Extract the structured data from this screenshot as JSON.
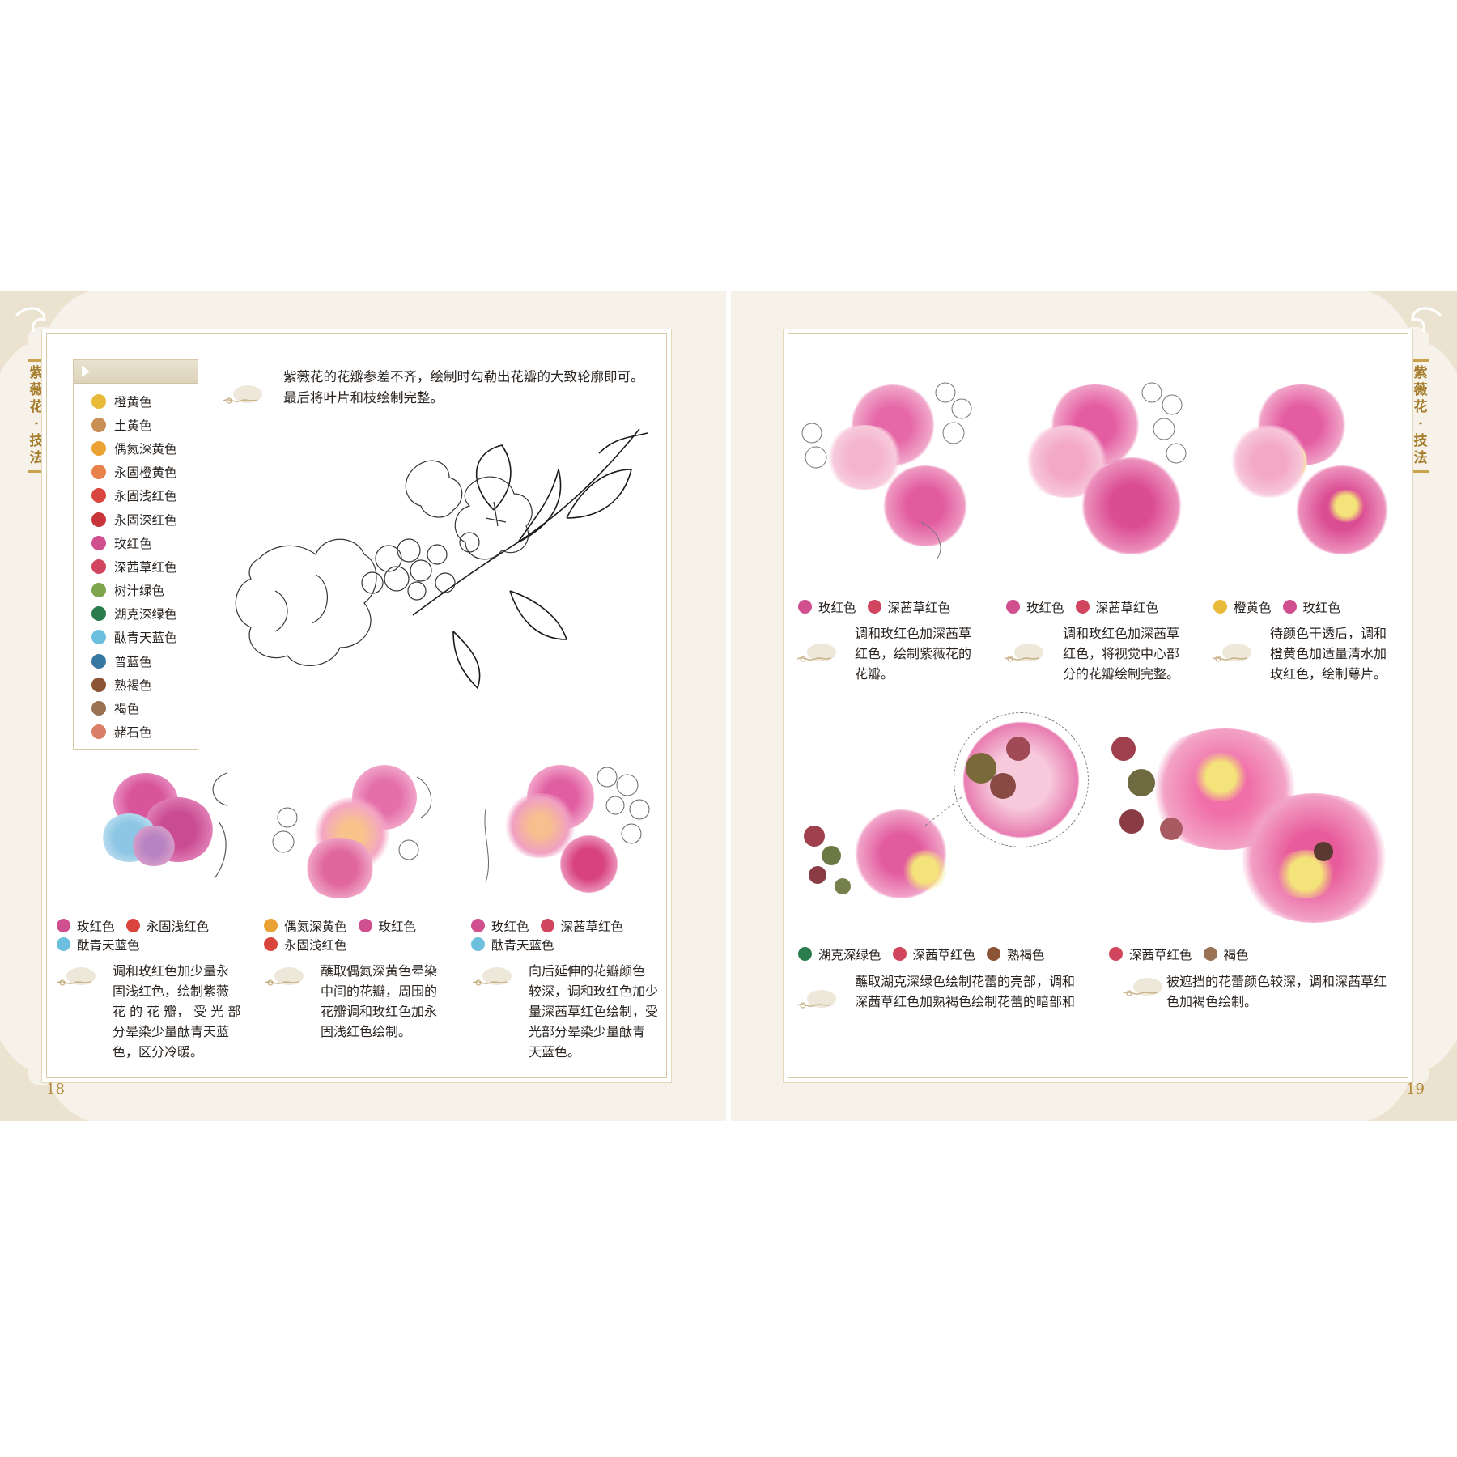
{
  "colors": {
    "orange_yellow": "#e9b93a",
    "earth_yellow": "#c98f55",
    "azo_deep_yellow": "#eba235",
    "perm_orange_yellow": "#e8814a",
    "perm_light_red": "#d9453c",
    "perm_deep_red": "#c8343a",
    "rose_red": "#cf4f8f",
    "deep_madder": "#d2455e",
    "sap_green": "#7ea54b",
    "hooker_deep_green": "#2b7c4c",
    "phthalo_sky_blue": "#6cc0dd",
    "prussian_blue": "#3678a2",
    "burnt_umber": "#8b5434",
    "brown": "#9a7254",
    "ochre": "#da7f67",
    "gold": "#b38a3b",
    "frame": "#d9c8a6"
  },
  "left_page": {
    "side_tab": [
      "紫",
      "薇",
      "花",
      "·",
      "技",
      "法"
    ],
    "page_number": "18",
    "palette": [
      {
        "name": "橙黄色",
        "color": "#e9b93a"
      },
      {
        "name": "土黄色",
        "color": "#c98f55"
      },
      {
        "name": "偶氮深黄色",
        "color": "#eba235"
      },
      {
        "name": "永固橙黄色",
        "color": "#e8814a"
      },
      {
        "name": "永固浅红色",
        "color": "#d9453c"
      },
      {
        "name": "永固深红色",
        "color": "#c8343a"
      },
      {
        "name": "玫红色",
        "color": "#cf4f8f"
      },
      {
        "name": "深茜草红色",
        "color": "#d2455e"
      },
      {
        "name": "树汁绿色",
        "color": "#7ea54b"
      },
      {
        "name": "湖克深绿色",
        "color": "#2b7c4c"
      },
      {
        "name": "酞青天蓝色",
        "color": "#6cc0dd"
      },
      {
        "name": "普蓝色",
        "color": "#3678a2"
      },
      {
        "name": "熟褐色",
        "color": "#8b5434"
      },
      {
        "name": "褐色",
        "color": "#9a7254"
      },
      {
        "name": "赭石色",
        "color": "#da7f67"
      }
    ],
    "intro_line1": "紫薇花的花瓣参差不齐，绘制时勾勒出花瓣的大致轮廓即可。",
    "intro_line2": "最后将叶片和枝绘制完整。",
    "steps": [
      {
        "swatches": [
          {
            "name": "玫红色"
          },
          {
            "name": "永固浅红色"
          },
          {
            "name": "酞青天蓝色"
          }
        ],
        "lines": [
          "调和玫红色加少量永",
          "固浅红色，绘制紫薇",
          "花 的 花 瓣， 受 光 部",
          "分晕染少量酞青天蓝",
          "色，区分冷暖。"
        ]
      },
      {
        "swatches": [
          {
            "name": "偶氮深黄色"
          },
          {
            "name": "玫红色"
          },
          {
            "name": "永固浅红色"
          }
        ],
        "lines": [
          "蘸取偶氮深黄色晕染",
          "中间的花瓣，周围的",
          "花瓣调和玫红色加永",
          "固浅红色绘制。"
        ]
      },
      {
        "swatches": [
          {
            "name": "玫红色"
          },
          {
            "name": "深茜草红色"
          },
          {
            "name": "酞青天蓝色"
          }
        ],
        "lines": [
          "向后延伸的花瓣颜色",
          "较深，调和玫红色加少",
          "量深茜草红色绘制，受",
          "光部分晕染少量酞青",
          "天蓝色。"
        ]
      }
    ]
  },
  "right_page": {
    "side_tab": [
      "紫",
      "薇",
      "花",
      "·",
      "技",
      "法"
    ],
    "page_number": "19",
    "steps_top": [
      {
        "swatches": [
          {
            "name": "玫红色"
          },
          {
            "name": "深茜草红色"
          }
        ],
        "lines": [
          "调和玫红色加深茜草",
          "红色，绘制紫薇花的",
          "花瓣。"
        ]
      },
      {
        "swatches": [
          {
            "name": "玫红色"
          },
          {
            "name": "深茜草红色"
          }
        ],
        "lines": [
          "调和玫红色加深茜草",
          "红色，将视觉中心部",
          "分的花瓣绘制完整。"
        ]
      },
      {
        "swatches": [
          {
            "name": "橙黄色"
          },
          {
            "name": "玫红色"
          }
        ],
        "lines": [
          "待颜色干透后，调和",
          "橙黄色加适量清水加",
          "玫红色，绘制萼片。"
        ]
      }
    ],
    "steps_bottom": [
      {
        "swatches": [
          {
            "name": "湖克深绿色"
          },
          {
            "name": "深茜草红色"
          },
          {
            "name": "熟褐色"
          }
        ],
        "lines": [
          "蘸取湖克深绿色绘制花蕾的亮部，调和",
          "深茜草红色加熟褐色绘制花蕾的暗部和"
        ]
      },
      {
        "swatches": [
          {
            "name": "深茜草红色"
          },
          {
            "name": "褐色"
          }
        ],
        "lines": [
          "被遮挡的花蕾颜色较深，调和深茜草红",
          "色加褐色绘制。"
        ]
      }
    ]
  }
}
